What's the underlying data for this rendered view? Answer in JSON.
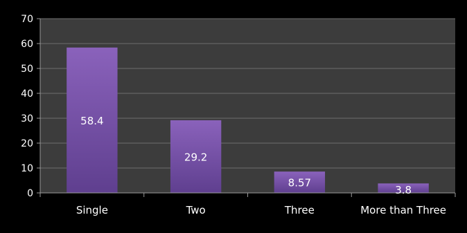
{
  "chart_data": {
    "type": "bar",
    "categories": [
      "Single",
      "Two",
      "Three",
      "More than Three"
    ],
    "values": [
      58.4,
      29.2,
      8.57,
      3.8
    ],
    "value_labels": [
      "58.4",
      "29.2",
      "8.57",
      "3.8"
    ],
    "title": "",
    "xlabel": "",
    "ylabel": "",
    "ylim": [
      0,
      70
    ],
    "yticks": [
      0,
      10,
      20,
      30,
      40,
      50,
      60,
      70
    ],
    "ytick_labels": [
      "0",
      "10",
      "20",
      "30",
      "40",
      "50",
      "60",
      "70"
    ],
    "grid": true,
    "legend": "none",
    "colors": {
      "background": "#000000",
      "plot_area": "#3c3c3c",
      "gridline": "#6e6e6e",
      "bar_top": "#8a62bb",
      "bar_bottom": "#5f3f8f",
      "text": "#ffffff",
      "axis": "#9a9a9a"
    }
  }
}
